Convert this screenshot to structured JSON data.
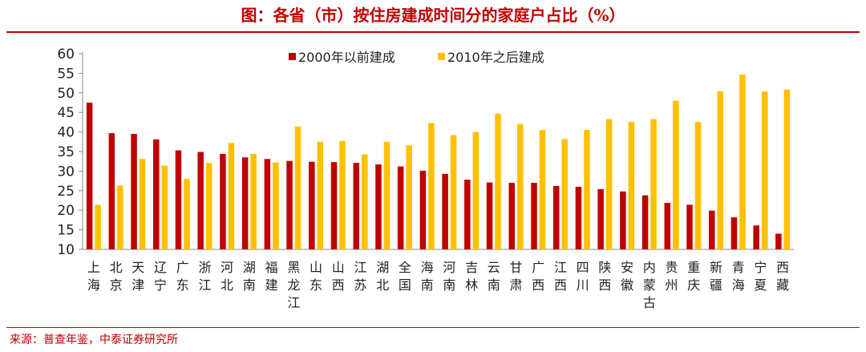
{
  "title": "图：各省（市）按住房建成时间分的家庭户占比（%）",
  "source": "来源：普查年鉴，中泰证券研究所",
  "colors": {
    "accent": "#c00000",
    "series_1": "#c00000",
    "series_2": "#ffc000"
  },
  "chart_data": {
    "type": "bar",
    "title": "",
    "xlabel": "",
    "ylabel": "",
    "ylim": [
      10,
      60
    ],
    "yticks": [
      10,
      15,
      20,
      25,
      30,
      35,
      40,
      45,
      50,
      55,
      60
    ],
    "grid": false,
    "legend": "top",
    "categories": [
      "上海",
      "北京",
      "天津",
      "辽宁",
      "广东",
      "浙江",
      "河北",
      "湖南",
      "福建",
      "黑龙江",
      "山东",
      "山西",
      "江苏",
      "湖北",
      "全国",
      "海南",
      "河南",
      "吉林",
      "云南",
      "甘肃",
      "广西",
      "江西",
      "四川",
      "陕西",
      "安徽",
      "内蒙古",
      "贵州",
      "重庆",
      "新疆",
      "青海",
      "宁夏",
      "西藏"
    ],
    "series": [
      {
        "name": "2000年以前建成",
        "values": [
          47.5,
          39.7,
          39.5,
          38.1,
          35.3,
          34.9,
          34.4,
          33.5,
          33.1,
          32.6,
          32.4,
          32.3,
          32.1,
          31.7,
          31.2,
          30.1,
          29.3,
          27.8,
          27.1,
          27.0,
          27.0,
          26.2,
          26.0,
          25.4,
          24.8,
          23.8,
          21.9,
          21.4,
          19.9,
          18.2,
          16.1,
          14.0
        ]
      },
      {
        "name": "2010年之后建成",
        "values": [
          21.4,
          26.3,
          33.1,
          31.4,
          28.0,
          32.1,
          37.2,
          34.4,
          32.2,
          41.4,
          37.5,
          37.7,
          34.3,
          37.5,
          36.6,
          42.3,
          39.2,
          40.0,
          44.7,
          42.0,
          40.5,
          38.2,
          40.5,
          43.3,
          42.6,
          43.3,
          48.0,
          42.6,
          50.4,
          54.7,
          50.4,
          50.8
        ]
      }
    ]
  }
}
